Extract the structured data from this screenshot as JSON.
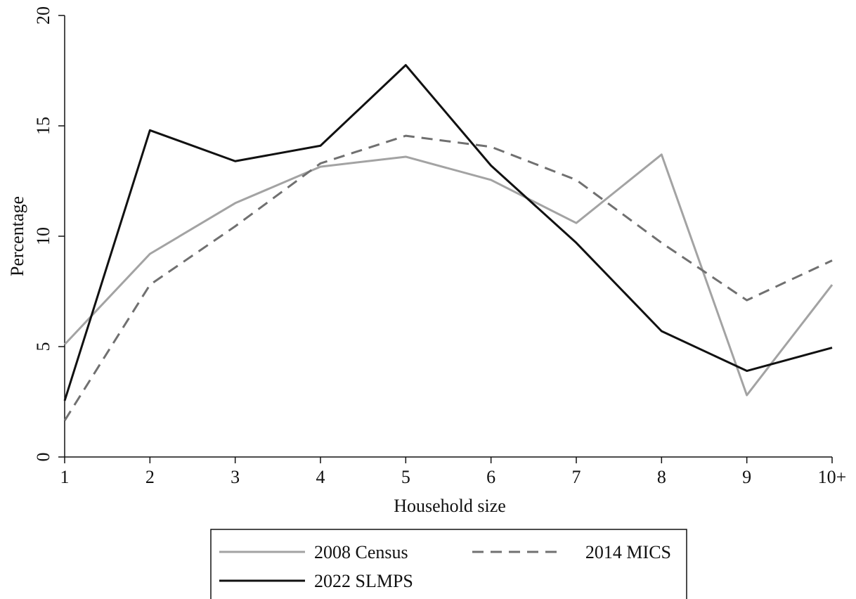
{
  "chart_data": {
    "type": "line",
    "x_label": "Household size",
    "y_label": "Percentage",
    "categories": [
      "1",
      "2",
      "3",
      "4",
      "5",
      "6",
      "7",
      "8",
      "9",
      "10+"
    ],
    "series": [
      {
        "name": "2008 Census",
        "color": "#a3a3a3",
        "dashed": false,
        "values": [
          5.1,
          9.2,
          11.5,
          13.15,
          13.6,
          12.55,
          10.6,
          13.7,
          2.8,
          7.8
        ]
      },
      {
        "name": "2014 MICS",
        "color": "#707070",
        "dashed": true,
        "values": [
          1.65,
          7.8,
          10.45,
          13.3,
          14.55,
          14.05,
          12.55,
          9.7,
          7.1,
          8.9
        ]
      },
      {
        "name": "2022 SLMPS",
        "color": "#111111",
        "dashed": false,
        "values": [
          2.55,
          14.8,
          13.4,
          14.1,
          17.75,
          13.2,
          9.7,
          5.7,
          3.9,
          4.95
        ]
      }
    ],
    "ylim": [
      0,
      20
    ],
    "yticks": [
      0,
      5,
      10,
      15,
      20
    ],
    "grid": false,
    "legend": "bottom"
  }
}
